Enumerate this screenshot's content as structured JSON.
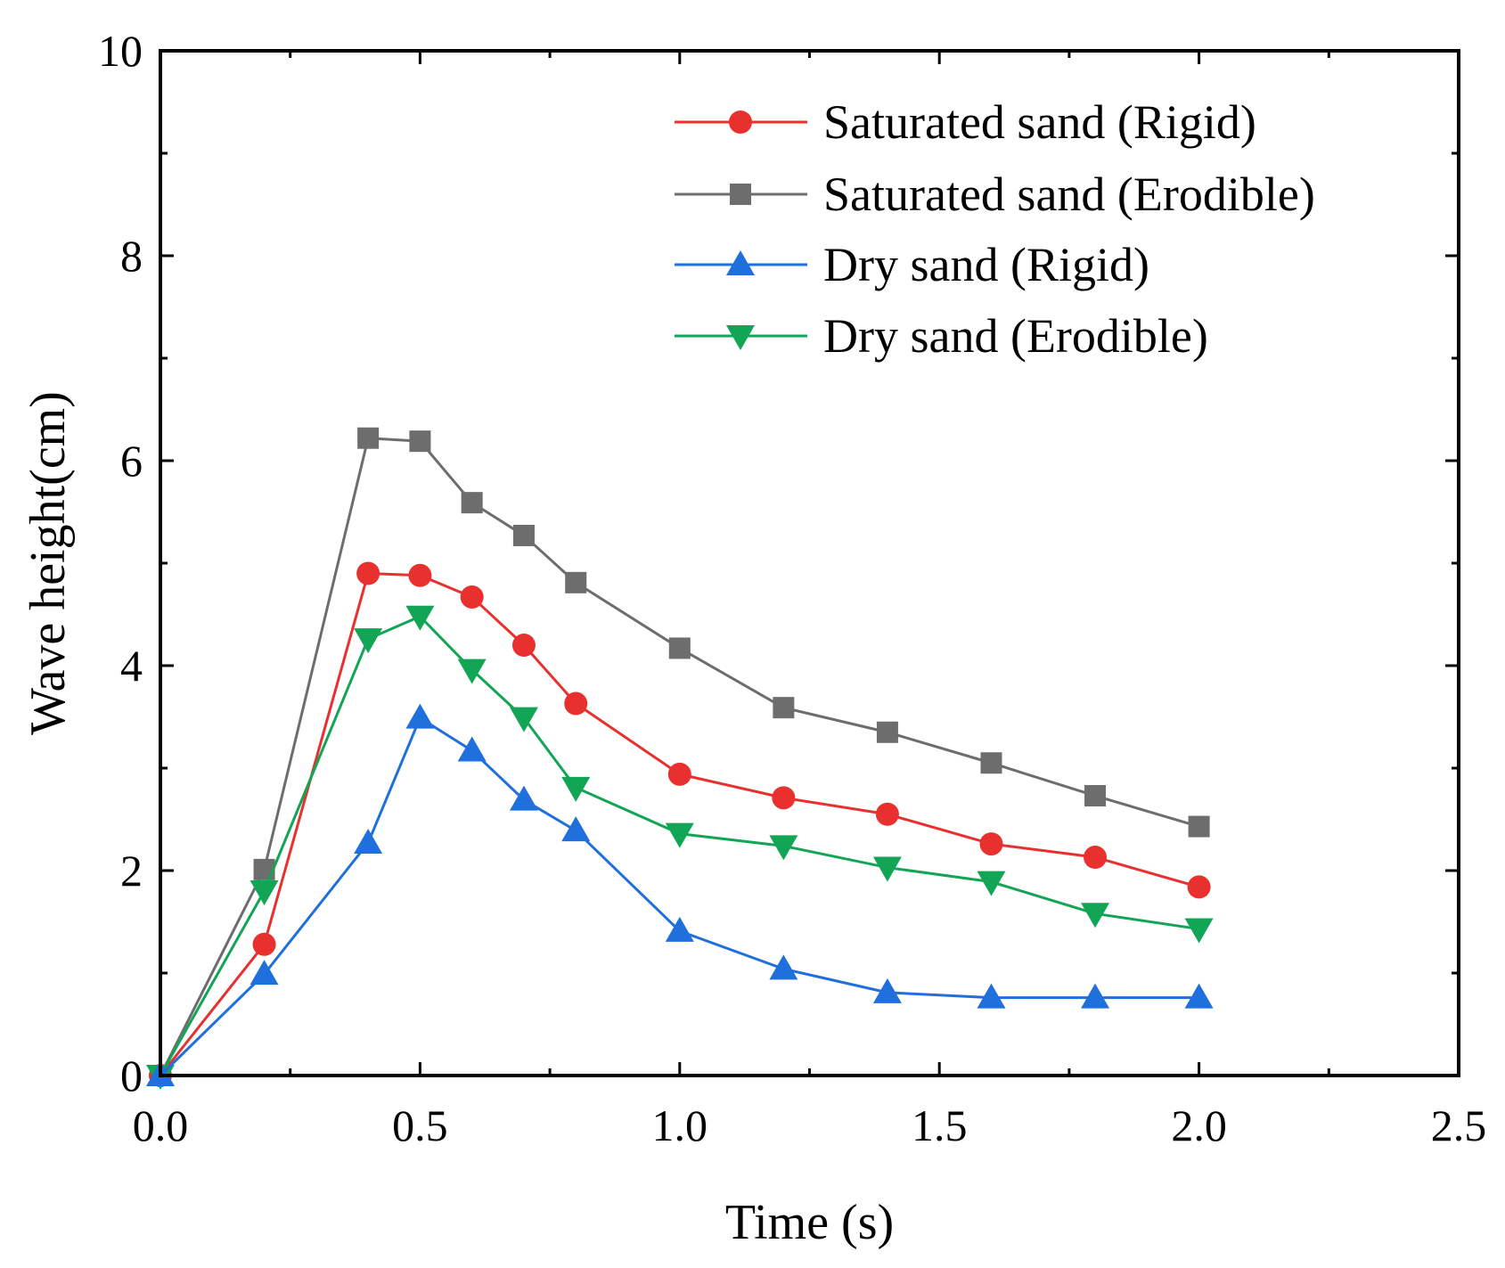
{
  "chart_data": {
    "type": "line",
    "xlabel": "Time (s)",
    "ylabel": "Wave height(cm)",
    "xlim": [
      0,
      2.5
    ],
    "ylim": [
      0,
      10
    ],
    "xticks": [
      "0.0",
      "0.5",
      "1.0",
      "1.5",
      "2.0",
      "2.5"
    ],
    "xtick_values": [
      0,
      0.5,
      1.0,
      1.5,
      2.0,
      2.5
    ],
    "yticks": [
      "0",
      "2",
      "4",
      "6",
      "8",
      "10"
    ],
    "ytick_values": [
      0,
      2,
      4,
      6,
      8,
      10
    ],
    "grid": false,
    "legend_position": "top-right",
    "series": [
      {
        "name": "Saturated sand (Rigid)",
        "color": "#e8312f",
        "marker": "circle",
        "x": [
          0,
          0.2,
          0.4,
          0.5,
          0.6,
          0.7,
          0.8,
          1.0,
          1.2,
          1.4,
          1.6,
          1.8,
          2.0
        ],
        "y": [
          0,
          1.28,
          4.9,
          4.88,
          4.67,
          4.2,
          3.63,
          2.94,
          2.71,
          2.55,
          2.26,
          2.13,
          1.84
        ]
      },
      {
        "name": "Saturated sand (Erodible)",
        "color": "#6d6d6d",
        "marker": "square",
        "x": [
          0,
          0.2,
          0.4,
          0.5,
          0.6,
          0.7,
          0.8,
          1.0,
          1.2,
          1.4,
          1.6,
          1.8,
          2.0
        ],
        "y": [
          0,
          2.01,
          6.22,
          6.19,
          5.59,
          5.27,
          4.81,
          4.17,
          3.59,
          3.35,
          3.05,
          2.73,
          2.43
        ]
      },
      {
        "name": "Dry sand (Rigid)",
        "color": "#1f6fdc",
        "marker": "triangle-up",
        "x": [
          0,
          0.2,
          0.4,
          0.5,
          0.6,
          0.7,
          0.8,
          1.0,
          1.2,
          1.4,
          1.6,
          1.8,
          2.0
        ],
        "y": [
          0,
          0.99,
          2.27,
          3.49,
          3.17,
          2.69,
          2.39,
          1.41,
          1.04,
          0.81,
          0.76,
          0.76,
          0.76
        ]
      },
      {
        "name": "Dry sand (Erodible)",
        "color": "#12a555",
        "marker": "triangle-down",
        "x": [
          0,
          0.2,
          0.4,
          0.5,
          0.6,
          0.7,
          0.8,
          1.0,
          1.2,
          1.4,
          1.6,
          1.8,
          2.0
        ],
        "y": [
          0,
          1.8,
          4.26,
          4.48,
          3.96,
          3.49,
          2.81,
          2.36,
          2.24,
          2.03,
          1.89,
          1.58,
          1.43
        ]
      }
    ]
  }
}
